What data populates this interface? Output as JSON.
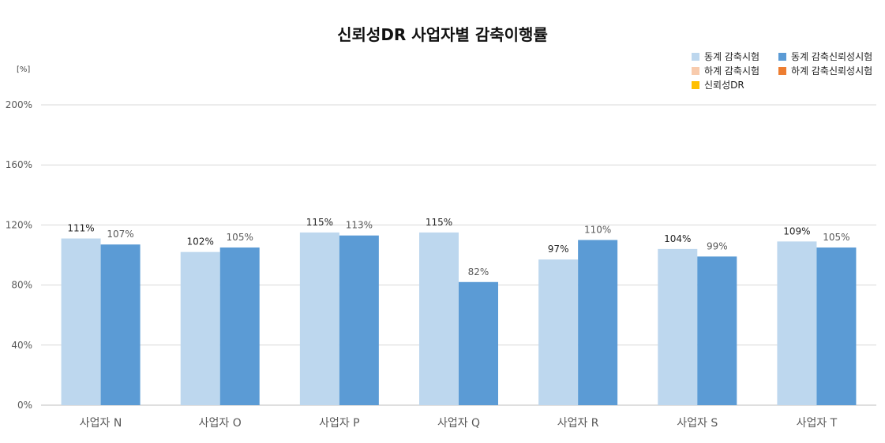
{
  "chart_data": {
    "type": "bar",
    "title": "신뢰성DR 사업자별 감축이행률",
    "unit_label": "[%]",
    "categories": [
      "사업자 N",
      "사업자 O",
      "사업자 P",
      "사업자 Q",
      "사업자 R",
      "사업자 S",
      "사업자 T"
    ],
    "series": [
      {
        "name": "동계 감축시험",
        "color": "#BDD7EE",
        "values": [
          111,
          102,
          115,
          115,
          97,
          104,
          109
        ],
        "labels": [
          "111%",
          "102%",
          "115%",
          "115%",
          "97%",
          "104%",
          "109%"
        ]
      },
      {
        "name": "동계 감축신뢰성시험",
        "color": "#5B9BD5",
        "values": [
          107,
          105,
          113,
          82,
          110,
          99,
          105
        ],
        "labels": [
          "107%",
          "105%",
          "113%",
          "82%",
          "110%",
          "99%",
          "105%"
        ]
      }
    ],
    "legend": [
      {
        "name": "동계 감축시험",
        "color": "#BDD7EE"
      },
      {
        "name": "동계 감축신뢰성시험",
        "color": "#5B9BD5"
      },
      {
        "name": "하계 감축시험",
        "color": "#F8CBAD"
      },
      {
        "name": "하계 감축신뢰성시험",
        "color": "#ED7D31"
      },
      {
        "name": "신뢰성DR",
        "color": "#FFC000"
      }
    ],
    "legend_position": "top-right",
    "ylim": [
      0,
      200
    ],
    "yticks": [
      0,
      40,
      80,
      120,
      160,
      200
    ],
    "ytick_labels": [
      "0%",
      "40%",
      "80%",
      "120%",
      "160%",
      "200%"
    ],
    "grid": true
  }
}
